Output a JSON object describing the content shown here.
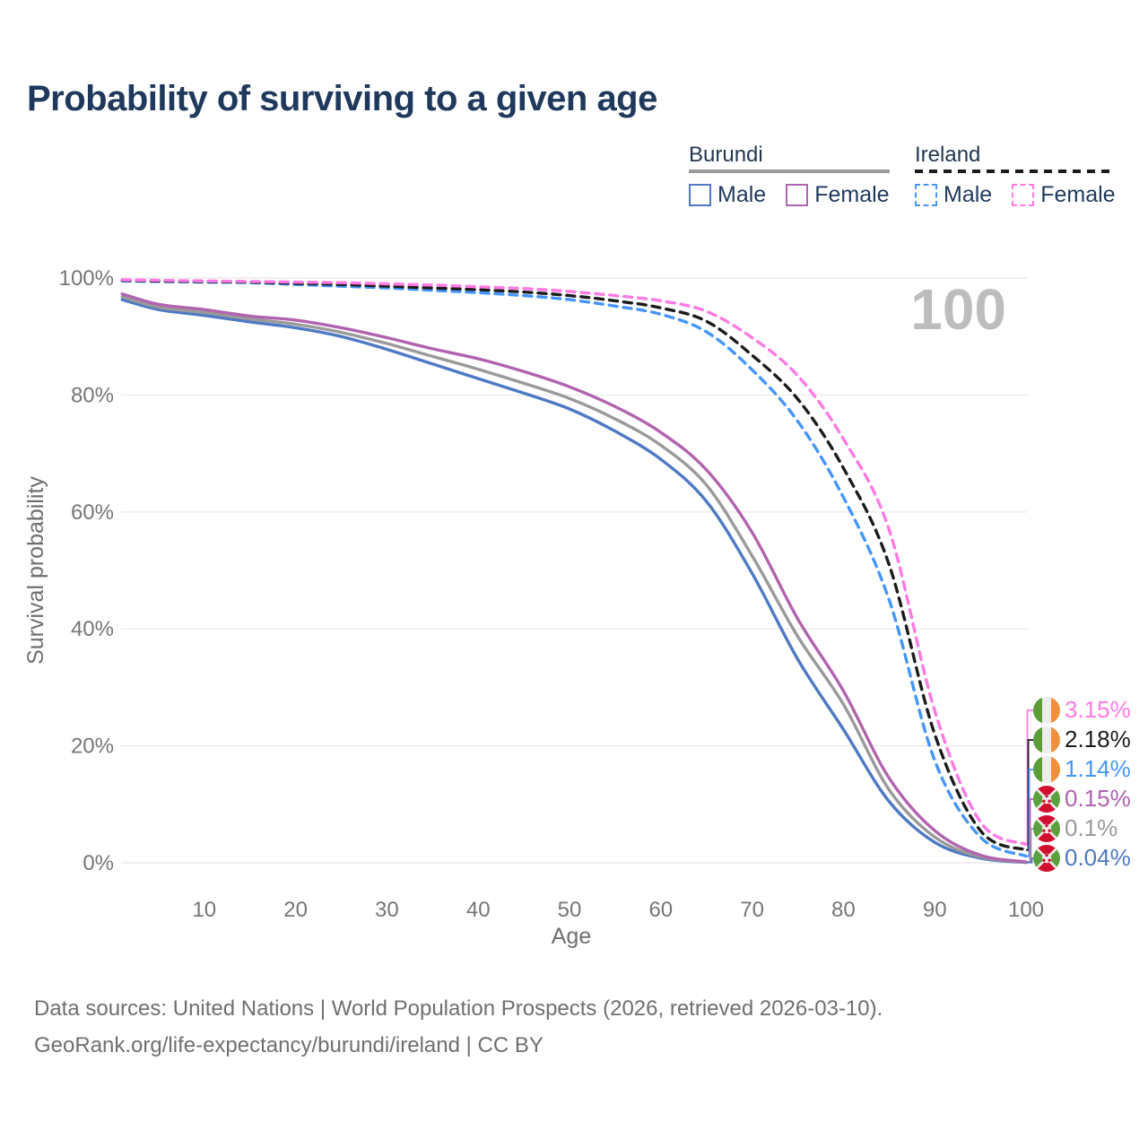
{
  "title": "Probability of surviving to a given age",
  "watermark": "100",
  "legend": {
    "groups": [
      {
        "country": "Burundi",
        "line_style": "solid",
        "underline_color": "#9a9a9a",
        "items": [
          {
            "label": "Male",
            "color": "#4e79c4"
          },
          {
            "label": "Female",
            "color": "#b163af"
          }
        ]
      },
      {
        "country": "Ireland",
        "line_style": "dashed",
        "underline_color": "#1c1c1c",
        "items": [
          {
            "label": "Male",
            "color": "#4596fb"
          },
          {
            "label": "Female",
            "color": "#ff7ae4"
          }
        ]
      }
    ]
  },
  "chart_data": {
    "type": "line",
    "title": "Probability of surviving to a given age",
    "xlabel": "Age",
    "ylabel": "Survival probability",
    "xlim": [
      0,
      100
    ],
    "ylim": [
      0,
      100
    ],
    "grid": "horizontal",
    "x_ticks": [
      10,
      20,
      30,
      40,
      50,
      60,
      70,
      80,
      90,
      100
    ],
    "y_ticks": [
      0,
      20,
      40,
      60,
      80,
      100
    ],
    "y_tick_labels": [
      "0%",
      "20%",
      "40%",
      "60%",
      "80%",
      "100%"
    ],
    "legend_position": "top-right",
    "x": [
      1,
      5,
      10,
      15,
      20,
      25,
      30,
      35,
      40,
      45,
      50,
      55,
      60,
      65,
      70,
      75,
      80,
      85,
      90,
      95,
      100
    ],
    "series": [
      {
        "name": "Burundi Male",
        "color": "#4e79c4",
        "dash": "solid",
        "end_label": "0.04%",
        "values": [
          96.3,
          94.6,
          93.6,
          92.5,
          91.5,
          90.0,
          87.8,
          85.3,
          82.8,
          80.3,
          77.6,
          73.8,
          69.0,
          61.8,
          49.5,
          34.8,
          22.8,
          10.5,
          3.5,
          0.8,
          0.04
        ]
      },
      {
        "name": "Burundi Both sexes",
        "color": "#9a9a9a",
        "dash": "solid",
        "end_label": "0.1%",
        "values": [
          96.8,
          95.0,
          94.1,
          93.0,
          92.1,
          90.7,
          88.8,
          86.6,
          84.4,
          82.0,
          79.4,
          75.9,
          71.4,
          64.6,
          52.5,
          38.7,
          27.1,
          12.5,
          4.4,
          1.0,
          0.1
        ]
      },
      {
        "name": "Burundi Female",
        "color": "#b163af",
        "dash": "solid",
        "end_label": "0.15%",
        "values": [
          97.3,
          95.5,
          94.6,
          93.5,
          92.8,
          91.5,
          89.8,
          87.9,
          86.2,
          84.0,
          81.4,
          78.0,
          73.6,
          67.2,
          56.5,
          41.7,
          29.4,
          14.5,
          5.5,
          1.3,
          0.15
        ]
      },
      {
        "name": "Ireland Male",
        "color": "#4596fb",
        "dash": "dashed",
        "end_label": "1.14%",
        "values": [
          99.5,
          99.4,
          99.3,
          99.2,
          98.9,
          98.6,
          98.3,
          97.9,
          97.5,
          97.0,
          96.3,
          95.2,
          93.8,
          90.8,
          84.3,
          75.5,
          62.5,
          45.0,
          17.5,
          4.4,
          1.14
        ]
      },
      {
        "name": "Ireland Both sexes",
        "color": "#1c1c1c",
        "dash": "dashed",
        "end_label": "2.18%",
        "values": [
          99.6,
          99.5,
          99.4,
          99.3,
          99.1,
          98.9,
          98.6,
          98.3,
          98.0,
          97.6,
          97.0,
          96.1,
          94.9,
          92.6,
          86.8,
          79.3,
          67.5,
          51.0,
          22.0,
          5.5,
          2.18
        ]
      },
      {
        "name": "Ireland Female",
        "color": "#ff7ae4",
        "dash": "dashed",
        "end_label": "3.15%",
        "values": [
          99.7,
          99.6,
          99.5,
          99.4,
          99.3,
          99.2,
          99.0,
          98.8,
          98.5,
          98.2,
          97.7,
          97.0,
          96.1,
          94.3,
          89.8,
          83.3,
          72.5,
          57.0,
          26.0,
          7.0,
          3.15
        ]
      }
    ]
  },
  "end_labels": [
    {
      "value": "3.15%",
      "flag": "ireland",
      "color": "#ff7ae4",
      "series_index": 5
    },
    {
      "value": "2.18%",
      "flag": "ireland",
      "color": "#1c1c1c",
      "series_index": 4
    },
    {
      "value": "1.14%",
      "flag": "ireland",
      "color": "#4596fb",
      "series_index": 3
    },
    {
      "value": "0.15%",
      "flag": "burundi",
      "color": "#b163af",
      "series_index": 2
    },
    {
      "value": "0.1%",
      "flag": "burundi",
      "color": "#9a9a9a",
      "series_index": 1
    },
    {
      "value": "0.04%",
      "flag": "burundi",
      "color": "#4e79c4",
      "series_index": 0
    }
  ],
  "footer": {
    "line1": "Data sources: United Nations | World Population Prospects (2026, retrieved 2026-03-10).",
    "line2": "GeoRank.org/life-expectancy/burundi/ireland | CC BY"
  }
}
